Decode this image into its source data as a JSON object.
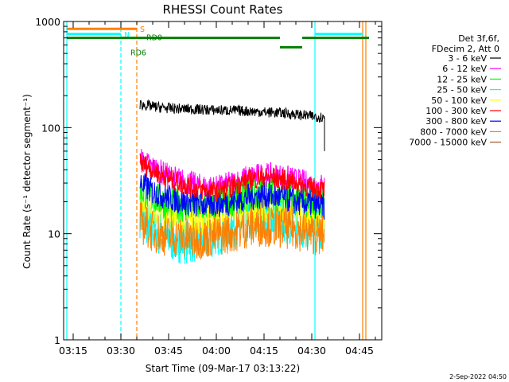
{
  "chart_data": {
    "type": "line",
    "title": "RHESSI Count Rates",
    "xlabel": "Start Time (09-Mar-17 03:13:22)",
    "ylabel": "Count Rate (s⁻¹ detector segment⁻¹)",
    "y_scale": "log",
    "ylim": [
      1,
      1000
    ],
    "xlim": [
      "03:12",
      "04:52"
    ],
    "x_ticks": [
      "03:15",
      "03:30",
      "03:45",
      "04:00",
      "04:15",
      "04:30",
      "04:45"
    ],
    "y_ticks": [
      {
        "value": 1,
        "label": "1"
      },
      {
        "value": 10,
        "label": "10"
      },
      {
        "value": 100,
        "label": "100"
      },
      {
        "value": 1000,
        "label": "1000"
      }
    ],
    "legend_header": [
      "Det 3f,6f,",
      "FDecim 2, Att 0"
    ],
    "legend_placement": "right-outside",
    "series": [
      {
        "name": "3 - 6 keV",
        "color": "#000000",
        "x": [
          "03:36",
          "03:40",
          "03:45",
          "03:50",
          "03:55",
          "04:00",
          "04:05",
          "04:10",
          "04:15",
          "04:20",
          "04:25",
          "04:30",
          "04:34"
        ],
        "y": [
          165,
          158,
          152,
          150,
          148,
          146,
          145,
          143,
          140,
          138,
          133,
          128,
          125
        ]
      },
      {
        "name": "6 - 12 keV",
        "color": "#ff00ff",
        "x": [
          "03:36",
          "03:40",
          "03:45",
          "03:50",
          "03:55",
          "04:00",
          "04:05",
          "04:10",
          "04:15",
          "04:20",
          "04:25",
          "04:30",
          "04:34"
        ],
        "y": [
          50,
          42,
          35,
          31,
          28,
          27,
          30,
          34,
          36,
          35,
          32,
          29,
          28
        ]
      },
      {
        "name": "12 - 25 keV",
        "color": "#00ff00",
        "x": [
          "03:36",
          "03:40",
          "03:45",
          "03:50",
          "03:55",
          "04:00",
          "04:05",
          "04:10",
          "04:15",
          "04:20",
          "04:25",
          "04:30",
          "04:34"
        ],
        "y": [
          26,
          22,
          19,
          18,
          18,
          19,
          21,
          23,
          24,
          23,
          21,
          20,
          19
        ]
      },
      {
        "name": "25 - 50 keV",
        "color": "#00ffff",
        "x": [
          "03:36",
          "03:40",
          "03:45",
          "03:50",
          "03:55",
          "04:00",
          "04:05",
          "04:10",
          "04:15",
          "04:20",
          "04:25",
          "04:30",
          "04:34"
        ],
        "y": [
          15,
          11,
          9,
          8.5,
          9,
          10,
          11.5,
          13,
          14,
          13.5,
          12.5,
          12,
          11.5
        ]
      },
      {
        "name": "50 - 100 keV",
        "color": "#ffff00",
        "x": [
          "03:36",
          "03:40",
          "03:45",
          "03:50",
          "03:55",
          "04:00",
          "04:05",
          "04:10",
          "04:15",
          "04:20",
          "04:25",
          "04:30",
          "04:34"
        ],
        "y": [
          20,
          17,
          15,
          14,
          14,
          15,
          16,
          17.5,
          18,
          17.5,
          16,
          15,
          14.5
        ]
      },
      {
        "name": "100 - 300 keV",
        "color": "#ff0000",
        "x": [
          "03:36",
          "03:40",
          "03:45",
          "03:50",
          "03:55",
          "04:00",
          "04:05",
          "04:10",
          "04:15",
          "04:20",
          "04:25",
          "04:30",
          "04:34"
        ],
        "y": [
          48,
          40,
          33,
          29,
          26,
          25,
          28,
          32,
          34,
          33,
          30,
          27,
          26
        ]
      },
      {
        "name": "300 - 800 keV",
        "color": "#0000ff",
        "x": [
          "03:36",
          "03:40",
          "03:45",
          "03:50",
          "03:55",
          "04:00",
          "04:05",
          "04:10",
          "04:15",
          "04:20",
          "04:25",
          "04:30",
          "04:34"
        ],
        "y": [
          30,
          25,
          22,
          20,
          19,
          19,
          20,
          22,
          23,
          22,
          20,
          19,
          18
        ]
      },
      {
        "name": "800 - 7000 keV",
        "color": "#ff8000",
        "x": [
          "03:36",
          "03:40",
          "03:45",
          "03:50",
          "03:55",
          "04:00",
          "04:05",
          "04:10",
          "04:15",
          "04:20",
          "04:25",
          "04:30",
          "04:34"
        ],
        "y": [
          13,
          10.5,
          9.5,
          9,
          9,
          9.5,
          10.5,
          11.5,
          12,
          11.5,
          11,
          10,
          9.5
        ]
      },
      {
        "name": "7000 - 15000 keV",
        "color": "#a0522d",
        "x": [],
        "y": []
      }
    ],
    "vertical_markers": [
      {
        "time": "03:13",
        "color": "#00ffff",
        "style": "solid"
      },
      {
        "time": "03:30",
        "color": "#00ffff",
        "style": "dashed"
      },
      {
        "time": "03:35",
        "color": "#ff8000",
        "style": "dashed"
      },
      {
        "time": "04:31",
        "color": "#00ffff",
        "style": "solid"
      },
      {
        "time": "04:46",
        "color": "#ff8000",
        "style": "solid"
      },
      {
        "time": "04:47",
        "color": "#ff8000",
        "style": "solid"
      }
    ],
    "flag_bars": [
      {
        "label": "S",
        "color": "#ff8000",
        "level": 0.98,
        "segments": [
          [
            "03:13",
            "03:35"
          ]
        ],
        "label_at": "03:36"
      },
      {
        "label": "N",
        "color": "#00ffff",
        "level": 0.87,
        "segments": [
          [
            "03:13",
            "03:30"
          ],
          [
            "04:31",
            "04:46"
          ]
        ],
        "label_at": "03:31"
      },
      {
        "label": "RD0",
        "color": "#008000",
        "level": 0.79,
        "segments": [
          [
            "03:13",
            "04:20"
          ],
          [
            "04:27",
            "04:48"
          ]
        ],
        "label_at": "03:38"
      },
      {
        "label": "RD6",
        "color": "#008000",
        "level": 0.66,
        "segments": [
          [
            "04:20",
            "04:27"
          ]
        ],
        "label_at": "03:33"
      }
    ],
    "grid": false
  },
  "timestamp": "2-Sep-2022 04:50"
}
